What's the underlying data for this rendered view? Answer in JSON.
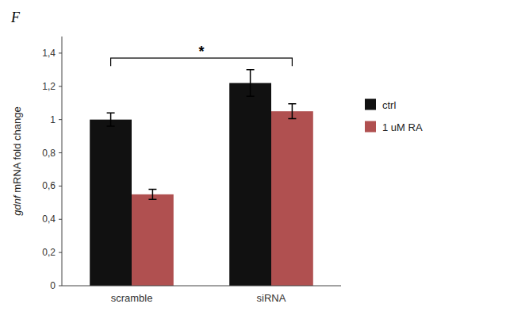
{
  "chart_data": {
    "type": "bar",
    "categories": [
      "scramble",
      "siRNA"
    ],
    "series": [
      {
        "name": "ctrl",
        "color": "#111111",
        "values": [
          1.0,
          1.22
        ],
        "errors": [
          0.04,
          0.08
        ]
      },
      {
        "name": "1 uM RA",
        "color": "#b05050",
        "values": [
          0.55,
          1.05
        ],
        "errors": [
          0.03,
          0.045
        ]
      }
    ],
    "ylim": [
      0,
      1.5
    ],
    "yticks": [
      0,
      {
        "value": 0.2,
        "label": "0,2"
      },
      {
        "value": 0.4,
        "label": "0,4"
      },
      {
        "value": 0.6,
        "label": "0,6"
      },
      {
        "value": 0.8,
        "label": "0,8"
      },
      1,
      {
        "value": 1.2,
        "label": "1,2"
      },
      {
        "value": 1.4,
        "label": "1,4"
      }
    ],
    "y_label": "gdnf mRNA fold change",
    "annotations": [
      {
        "text": "F"
      },
      {
        "text": "*",
        "y": 1.37
      }
    ],
    "legend": "right",
    "grid": false
  }
}
